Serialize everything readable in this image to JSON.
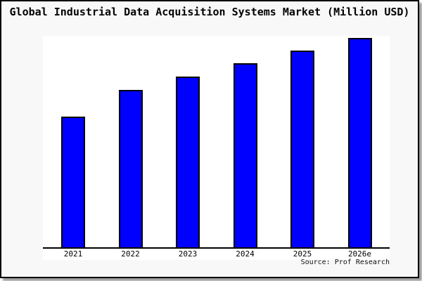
{
  "page": {
    "background": "#ffffff",
    "frame_background": "#f8f8f8",
    "frame_border_color": "#000000",
    "shadow_color": "#999999"
  },
  "header": {
    "title": "Global Industrial Data Acquisition Systems Market (Million USD)"
  },
  "footer": {
    "source": "Source: Prof Research"
  },
  "chart_data": {
    "type": "bar",
    "title": "Global Industrial Data Acquisition Systems Market (Million USD)",
    "categories": [
      "2021",
      "2022",
      "2023",
      "2024",
      "2025",
      "2026e"
    ],
    "values": [
      62.7,
      75.3,
      81.7,
      88.0,
      94.0,
      100.0
    ],
    "values_note": "No y-axis, gridlines or data labels are shown; values are bar heights relative to the tallest bar (2026e = 100)",
    "xlabel": "",
    "ylabel": "",
    "ylim": [
      0,
      101
    ],
    "grid": false,
    "legend": false,
    "bar_fill": "#0000ff",
    "bar_border": "#000000",
    "plot_background": "#ffffff",
    "source": "Source: Prof Research"
  }
}
